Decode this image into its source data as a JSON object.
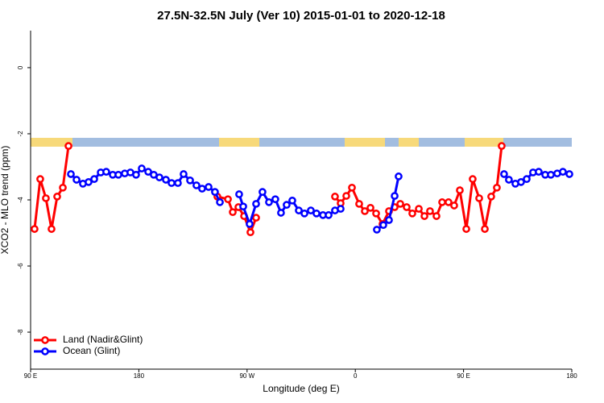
{
  "chart_data": {
    "type": "line",
    "title": "27.5N-32.5N July (Ver 10)   2015-01-01 to 2020-12-18",
    "x_label": "Longitude (deg E)",
    "y_label": "XCO2 - MLO trend (ppm)",
    "xlim": [
      90,
      540
    ],
    "ylim": [
      -9.12,
      1.12
    ],
    "xticks": [
      {
        "value": 90,
        "label": "90 E"
      },
      180,
      {
        "value": 270,
        "label": "90 W"
      },
      {
        "value": 360,
        "label": "0"
      },
      {
        "value": 450,
        "label": "90 E"
      },
      {
        "value": 540,
        "label": "180"
      }
    ],
    "yticks": [
      0,
      -2,
      -4,
      -6,
      -8
    ],
    "legend": "bottomleft",
    "series": [
      {
        "name": "Land (Nadir&Glint)",
        "color": "#ff0000",
        "x": [
          93.3,
          98.0,
          102.7,
          107.4,
          112.1,
          116.8,
          121.5,
          null,
          245.3,
          254.1,
          258.1,
          262.8,
          267.5,
          272.8,
          277.5,
          null,
          343.1,
          347.8,
          352.5,
          357.2,
          363.2,
          367.9,
          372.6,
          377.3,
          382.6,
          388.0,
          392.7,
          397.4,
          402.7,
          407.4,
          412.8,
          417.5,
          422.1,
          427.5,
          432.2,
          437.5,
          442.2,
          446.9,
          452.3,
          457.6,
          463.0,
          467.7,
          473.0,
          477.7,
          481.7
        ],
        "values": [
          -4.88,
          -3.37,
          -3.95,
          -4.88,
          -3.9,
          -3.63,
          -2.37,
          null,
          -3.9,
          -3.98,
          -4.37,
          -4.22,
          -4.49,
          -4.98,
          -4.54,
          null,
          -3.9,
          -4.1,
          -3.88,
          -3.63,
          -4.12,
          -4.34,
          -4.24,
          -4.41,
          -4.73,
          -4.34,
          -4.22,
          -4.12,
          -4.22,
          -4.41,
          -4.27,
          -4.49,
          -4.34,
          -4.49,
          -4.07,
          -4.07,
          -4.17,
          -3.71,
          -4.88,
          -3.37,
          -3.95,
          -4.88,
          -3.9,
          -3.63,
          -2.37
        ]
      },
      {
        "name": "Ocean (Glint)",
        "color": "#0000ff",
        "x": [
          123.5,
          128.2,
          133.5,
          138.2,
          142.9,
          148.3,
          152.9,
          158.3,
          163.0,
          168.3,
          173.0,
          177.7,
          182.4,
          187.8,
          192.4,
          197.1,
          202.5,
          207.2,
          212.5,
          217.2,
          222.6,
          227.9,
          232.6,
          238.0,
          243.3,
          247.4,
          null,
          263.4,
          266.8,
          272.1,
          277.5,
          282.8,
          288.2,
          293.5,
          298.2,
          302.9,
          307.6,
          313.0,
          317.7,
          323.0,
          327.7,
          333.1,
          337.8,
          343.1,
          347.8,
          null,
          377.9,
          383.3,
          388.0,
          392.7,
          396.0,
          null,
          483.7,
          487.7,
          493.1,
          497.8,
          502.5,
          507.8,
          512.5,
          517.9,
          522.6,
          527.9,
          532.6,
          538.0
        ],
        "values": [
          -3.22,
          -3.39,
          -3.51,
          -3.46,
          -3.37,
          -3.17,
          -3.15,
          -3.24,
          -3.24,
          -3.2,
          -3.17,
          -3.24,
          -3.05,
          -3.15,
          -3.24,
          -3.32,
          -3.39,
          -3.49,
          -3.49,
          -3.22,
          -3.41,
          -3.56,
          -3.66,
          -3.61,
          -3.76,
          -4.07,
          null,
          -3.83,
          -4.2,
          -4.73,
          -4.12,
          -3.76,
          -4.07,
          -3.98,
          -4.39,
          -4.15,
          -4.02,
          -4.32,
          -4.41,
          -4.32,
          -4.41,
          -4.46,
          -4.46,
          -4.32,
          -4.27,
          null,
          -4.9,
          -4.76,
          -4.61,
          -3.88,
          -3.29,
          null,
          -3.22,
          -3.39,
          -3.51,
          -3.46,
          -3.37,
          -3.17,
          -3.15,
          -3.24,
          -3.24,
          -3.2,
          -3.15,
          -3.22
        ]
      }
    ]
  }
}
